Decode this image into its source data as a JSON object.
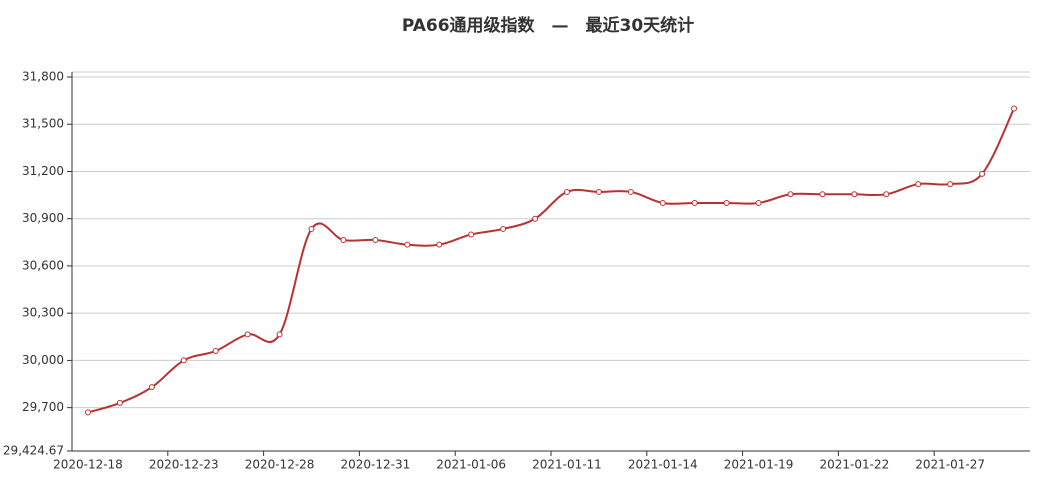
{
  "chart_data": {
    "type": "line",
    "title": "PA66通用级指数　—　最近30天统计",
    "categories": [
      "2020-12-18",
      null,
      null,
      "2020-12-23",
      null,
      null,
      "2020-12-28",
      null,
      null,
      "2020-12-31",
      null,
      null,
      "2021-01-06",
      null,
      null,
      "2021-01-11",
      null,
      null,
      "2021-01-14",
      null,
      null,
      "2021-01-19",
      null,
      null,
      "2021-01-22",
      null,
      null,
      "2021-01-27",
      null,
      null
    ],
    "series": [
      {
        "color": "#b83232",
        "values": [
          29670,
          29730,
          29830,
          30000,
          30060,
          30165,
          30165,
          30835,
          30765,
          30765,
          30735,
          30735,
          30800,
          30835,
          30900,
          31070,
          31070,
          31070,
          31000,
          31000,
          31000,
          31000,
          31055,
          31055,
          31055,
          31055,
          31120,
          31120,
          31185,
          31600
        ]
      }
    ],
    "ylim": [
      29424.67,
      31800
    ],
    "yticks": [
      {
        "value": 29424.67,
        "label": "29,424.67"
      },
      {
        "value": 29700,
        "label": "29,700"
      },
      {
        "value": 30000,
        "label": "30,000"
      },
      {
        "value": 30300,
        "label": "30,300"
      },
      {
        "value": 30600,
        "label": "30,600"
      },
      {
        "value": 30900,
        "label": "30,900"
      },
      {
        "value": 31200,
        "label": "31,200"
      },
      {
        "value": 31500,
        "label": "31,500"
      },
      {
        "value": 31800,
        "label": "31,800"
      }
    ],
    "grid": true
  }
}
